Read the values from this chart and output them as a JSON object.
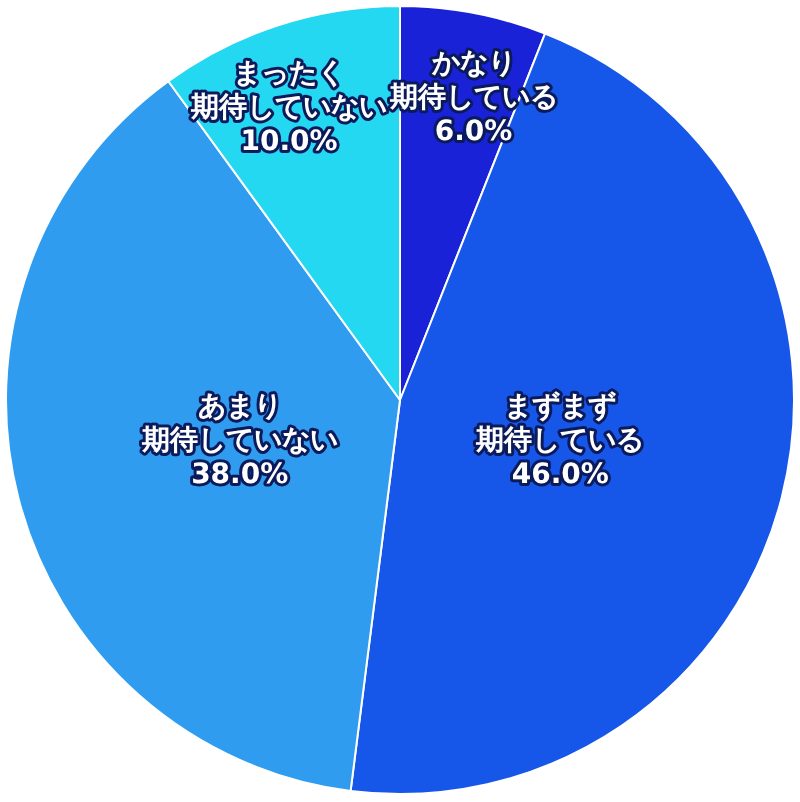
{
  "chart_data": {
    "type": "pie",
    "categories": [
      "かなり期待している",
      "まずまず期待している",
      "あまり期待していない",
      "まったく期待していない"
    ],
    "values": [
      6.0,
      46.0,
      38.0,
      10.0
    ],
    "value_labels": [
      "6.0%",
      "46.0%",
      "38.0%",
      "10.0%"
    ],
    "colors": [
      "#1a22d8",
      "#1656e8",
      "#2f9cf0",
      "#24d8f2"
    ]
  }
}
